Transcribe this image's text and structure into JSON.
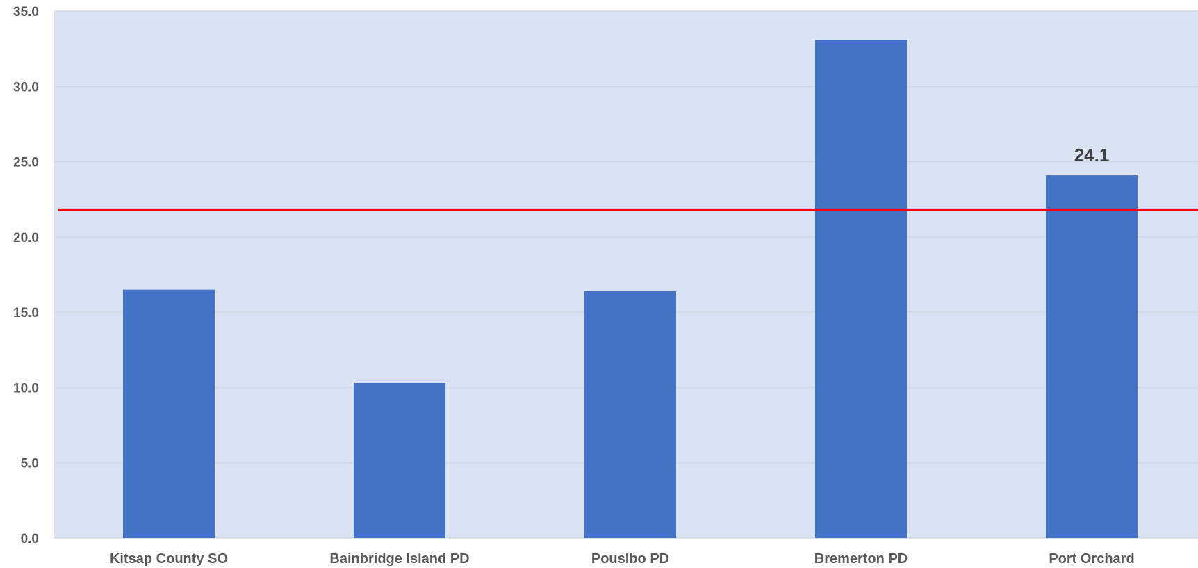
{
  "chart_data": {
    "type": "bar",
    "categories": [
      "Kitsap County SO",
      "Bainbridge Island PD",
      "Pouslbo PD",
      "Bremerton PD",
      "Port Orchard"
    ],
    "values": [
      16.5,
      10.3,
      16.4,
      33.1,
      24.1
    ],
    "data_labels": [
      null,
      null,
      null,
      null,
      "24.1"
    ],
    "y_ticks": [
      "0.0",
      "5.0",
      "10.0",
      "15.0",
      "20.0",
      "25.0",
      "30.0",
      "35.0"
    ],
    "ylim": [
      0,
      35
    ],
    "reference_line": {
      "value": 21.8,
      "color": "#FF0000"
    },
    "title": "",
    "xlabel": "",
    "ylabel": "",
    "grid": true,
    "legend": "none",
    "colors": {
      "bar": "#4472C4",
      "plot_background": "#DAE3F3",
      "gridline": "#D0D8E4",
      "reference_line": "#FF0000",
      "axis_text": "#595959",
      "data_label_text": "#404040"
    }
  }
}
